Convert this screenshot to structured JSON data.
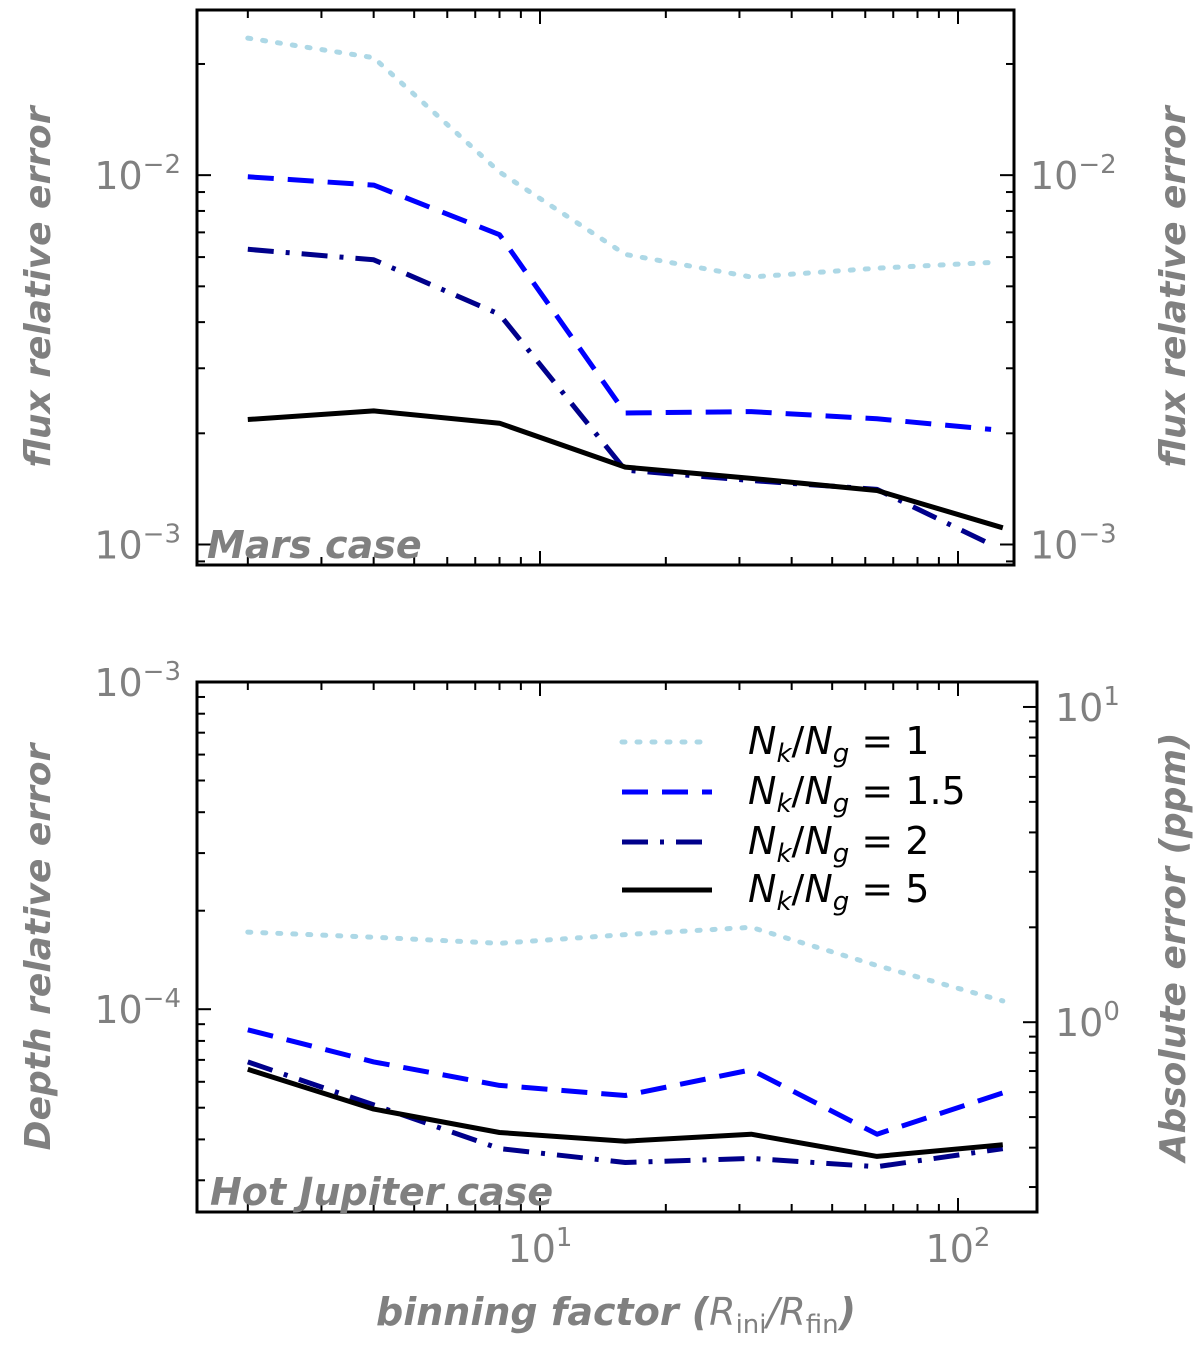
{
  "chart_data": [
    {
      "type": "line",
      "scale": {
        "x": "log",
        "y": "log"
      },
      "xlim": [
        1.6,
        140
      ],
      "ylim": [
        0.00088,
        0.028
      ],
      "y_right_mirror": true,
      "ylabel": "flux relative error",
      "ylabel_right": "flux relative error",
      "annotation": "Mars case",
      "y_ticks": [
        {
          "value": 0.01,
          "base": "10",
          "exp": "−2"
        },
        {
          "value": 0.001,
          "base": "10",
          "exp": "−3"
        }
      ],
      "series": [
        {
          "name": "N_k/N_g = 1",
          "color": "#add8e6",
          "dash": "dotted",
          "x": [
            2,
            4,
            8,
            16,
            32,
            64,
            120
          ],
          "y": [
            0.0235,
            0.0208,
            0.0102,
            0.0061,
            0.0053,
            0.0056,
            0.0058
          ]
        },
        {
          "name": "N_k/N_g = 1.5",
          "color": "#0000ff",
          "dash": "dashed",
          "x": [
            2,
            4,
            8,
            16,
            32,
            64,
            120
          ],
          "y": [
            0.0099,
            0.0094,
            0.0069,
            0.00227,
            0.00229,
            0.00219,
            0.00205
          ]
        },
        {
          "name": "N_k/N_g = 2",
          "color": "#00008b",
          "dash": "dashdot",
          "x": [
            2,
            4,
            8,
            16,
            32,
            64,
            120
          ],
          "y": [
            0.0063,
            0.0059,
            0.0042,
            0.00159,
            0.00149,
            0.00141,
            0.001
          ]
        },
        {
          "name": "N_k/N_g = 5",
          "color": "#000000",
          "dash": "solid",
          "x": [
            2,
            4,
            8,
            16,
            32,
            64,
            128
          ],
          "y": [
            0.00218,
            0.0023,
            0.00213,
            0.00162,
            0.00151,
            0.0014,
            0.00111
          ]
        }
      ]
    },
    {
      "type": "line",
      "scale": {
        "x": "log",
        "y": "log"
      },
      "xlim": [
        1.6,
        140
      ],
      "ylim": [
        2.4e-05,
        0.001
      ],
      "ylim_right_ppm": [
        0.25,
        12
      ],
      "xlabel_main": "binning factor (",
      "xlabel_sym1": "R",
      "xlabel_sub1": "ini",
      "xlabel_slash": "/",
      "xlabel_sym2": "R",
      "xlabel_sub2": "fin",
      "xlabel_close": ")",
      "ylabel": "Depth relative error",
      "ylabel_right": "Absolute error (ppm)",
      "annotation": "Hot Jupiter case",
      "x_ticks": [
        {
          "value": 10,
          "base": "10",
          "exp": "1"
        },
        {
          "value": 100,
          "base": "10",
          "exp": "2"
        }
      ],
      "y_ticks": [
        {
          "value": 0.001,
          "base": "10",
          "exp": "−3"
        },
        {
          "value": 0.0001,
          "base": "10",
          "exp": "−4"
        }
      ],
      "y_right_ticks": [
        {
          "value": 10,
          "base": "10",
          "exp": "1"
        },
        {
          "value": 1,
          "base": "10",
          "exp": "0"
        }
      ],
      "legend_position": "upper-right",
      "series": [
        {
          "name": "N_k/N_g = 1",
          "color": "#add8e6",
          "dash": "dotted",
          "x": [
            2,
            4,
            8,
            16,
            32,
            64,
            128
          ],
          "y": [
            0.000172,
            0.000166,
            0.000159,
            0.000169,
            0.000178,
            0.000136,
            0.000106
          ]
        },
        {
          "name": "N_k/N_g = 1.5",
          "color": "#0000ff",
          "dash": "dashed",
          "x": [
            2,
            4,
            8,
            16,
            32,
            64,
            128
          ],
          "y": [
            8.65e-05,
            6.9e-05,
            5.85e-05,
            5.45e-05,
            6.53e-05,
            4.15e-05,
            5.55e-05
          ]
        },
        {
          "name": "N_k/N_g = 2",
          "color": "#00008b",
          "dash": "dashdot",
          "x": [
            2,
            4,
            8,
            16,
            32,
            64,
            128
          ],
          "y": [
            6.9e-05,
            5.1e-05,
            3.75e-05,
            3.4e-05,
            3.5e-05,
            3.3e-05,
            3.75e-05
          ]
        },
        {
          "name": "N_k/N_g = 5",
          "color": "#000000",
          "dash": "solid",
          "x": [
            2,
            4,
            8,
            16,
            32,
            64,
            128
          ],
          "y": [
            6.55e-05,
            4.95e-05,
            4.2e-05,
            3.95e-05,
            4.15e-05,
            3.55e-05,
            3.85e-05
          ]
        }
      ]
    }
  ],
  "legend": [
    {
      "sym1": "N",
      "sub1": "k",
      "slash": "/",
      "sym2": "N",
      "sub2": "g",
      "eq": " = 1",
      "color": "#add8e6",
      "dash": "dotted"
    },
    {
      "sym1": "N",
      "sub1": "k",
      "slash": "/",
      "sym2": "N",
      "sub2": "g",
      "eq": " = 1.5",
      "color": "#0000ff",
      "dash": "dashed"
    },
    {
      "sym1": "N",
      "sub1": "k",
      "slash": "/",
      "sym2": "N",
      "sub2": "g",
      "eq": " = 2",
      "color": "#00008b",
      "dash": "dashdot"
    },
    {
      "sym1": "N",
      "sub1": "k",
      "slash": "/",
      "sym2": "N",
      "sub2": "g",
      "eq": " = 5",
      "color": "#000000",
      "dash": "solid"
    }
  ]
}
